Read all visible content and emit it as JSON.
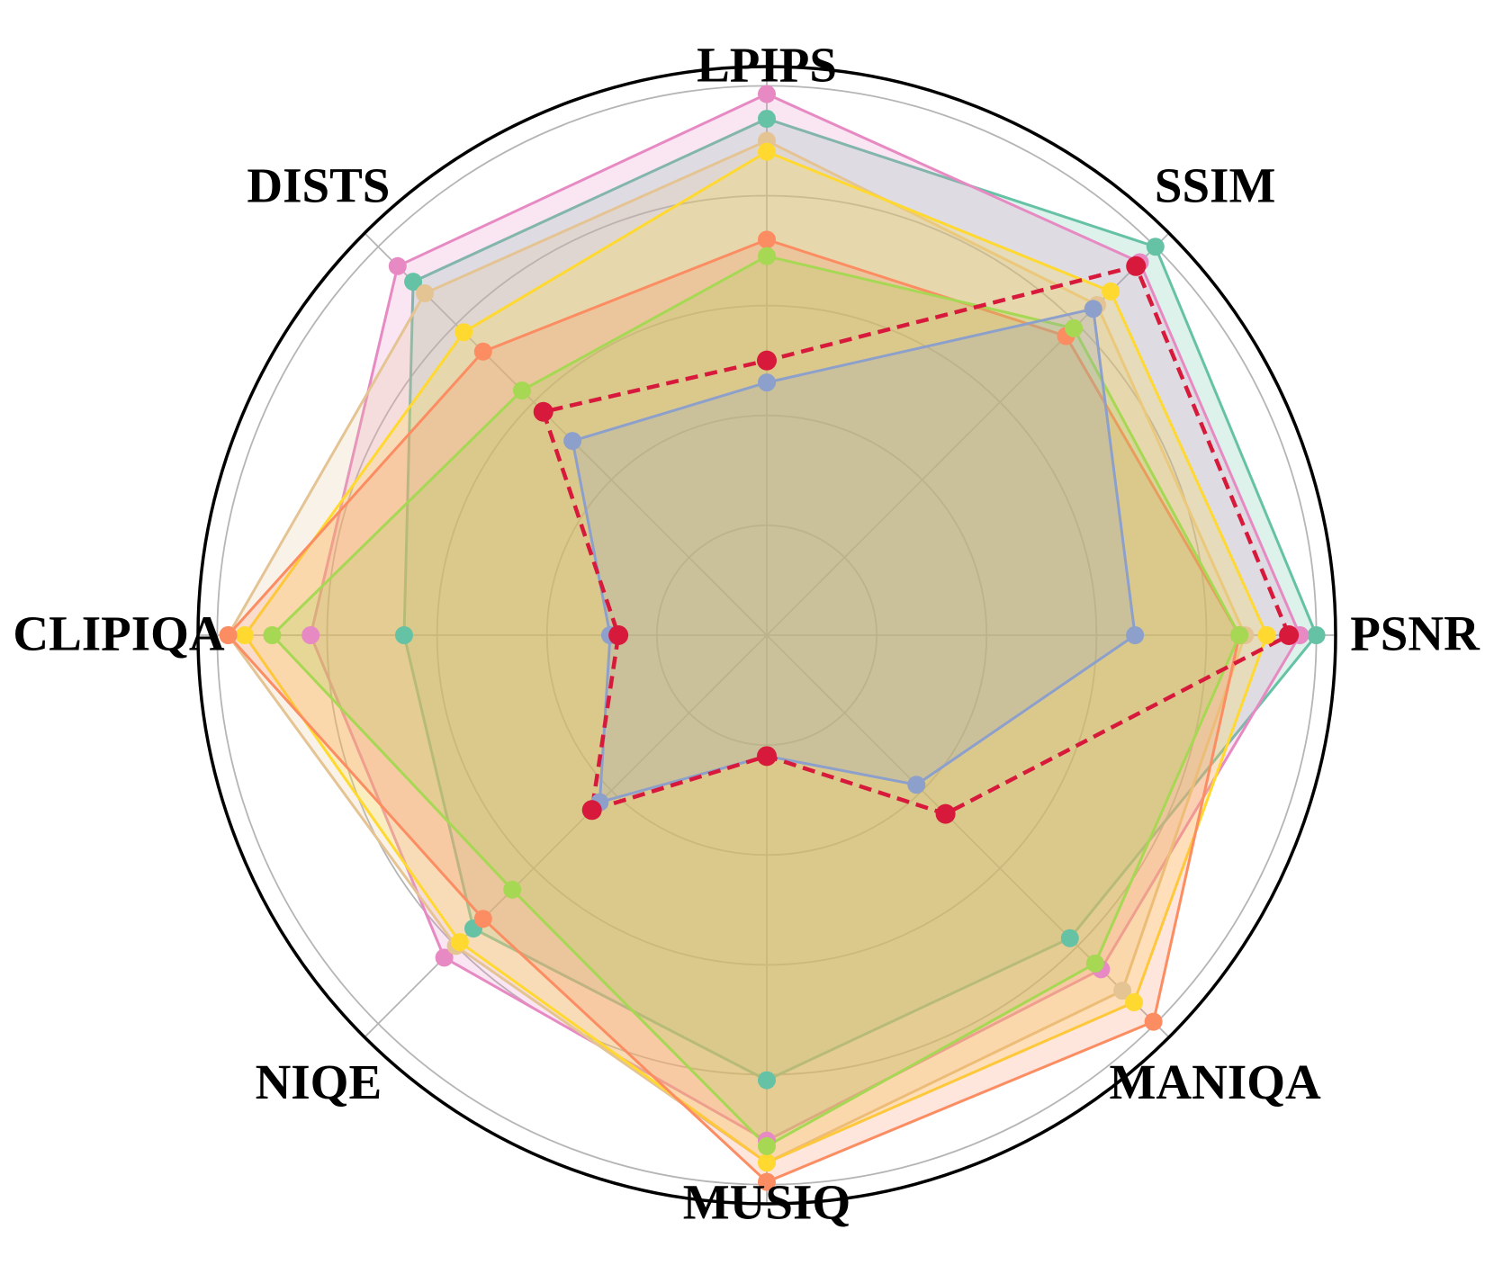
{
  "chart_data": {
    "type": "radar",
    "categories": [
      "PSNR",
      "SSIM",
      "LPIPS",
      "DISTS",
      "CLIPIQA",
      "NIQE",
      "MUSIQ",
      "MANIQA"
    ],
    "rlim": [
      0,
      1.035
    ],
    "rticks": [
      0.2,
      0.4,
      0.6,
      0.8,
      1.0
    ],
    "grid": true,
    "fill_opacity": 0.22,
    "series": [
      {
        "color": "#66c2a5",
        "values": [
          1.0,
          1.0,
          0.94,
          0.91,
          0.66,
          0.755,
          0.81,
          0.78
        ]
      },
      {
        "color": "#e78ac3",
        "values": [
          0.97,
          0.96,
          0.985,
          0.95,
          0.83,
          0.83,
          0.92,
          0.86
        ]
      },
      {
        "color": "#e5c494",
        "values": [
          0.87,
          0.85,
          0.9,
          0.88,
          0.98,
          0.8,
          0.96,
          0.915
        ]
      },
      {
        "color": "#ffd92f",
        "values": [
          0.91,
          0.885,
          0.88,
          0.78,
          0.95,
          0.79,
          0.96,
          0.945
        ]
      },
      {
        "color": "#fc8d62",
        "values": [
          0.86,
          0.77,
          0.72,
          0.73,
          0.98,
          0.73,
          0.995,
          0.995
        ]
      },
      {
        "color": "#a6d854",
        "values": [
          0.86,
          0.79,
          0.69,
          0.63,
          0.9,
          0.655,
          0.93,
          0.845
        ]
      },
      {
        "color": "#8da0cb",
        "values": [
          0.67,
          0.84,
          0.46,
          0.5,
          0.285,
          0.43,
          0.22,
          0.385
        ]
      },
      {
        "color": "#d7193c",
        "linestyle": "dashed",
        "fill": false,
        "values": [
          0.95,
          0.95,
          0.5,
          0.575,
          0.27,
          0.45,
          0.22,
          0.46
        ]
      }
    ]
  }
}
